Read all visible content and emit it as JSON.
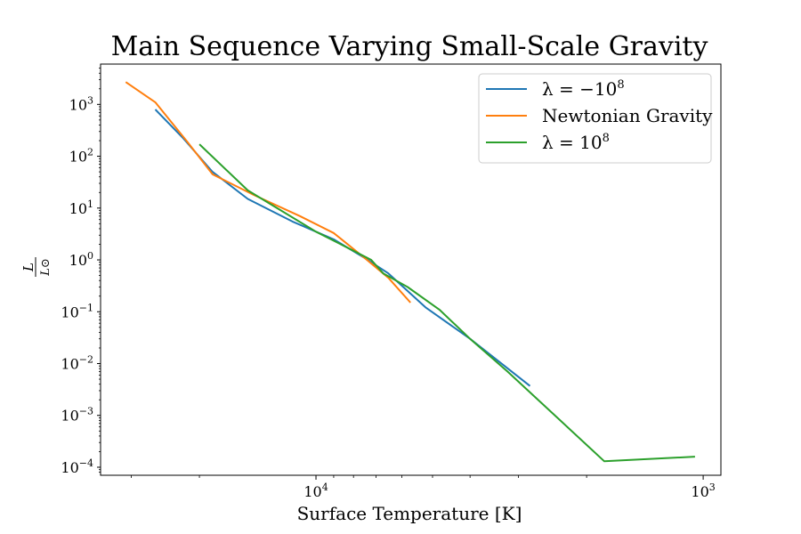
{
  "chart_data": {
    "type": "line",
    "title": "Main Sequence Varying Small-Scale Gravity",
    "xlabel": "Surface Temperature [K]",
    "ylabel_num": "L",
    "ylabel_den": "L⊙",
    "x_scale": "log",
    "y_scale": "log",
    "x_inverted": true,
    "xlim": [
      36000,
      900
    ],
    "ylim": [
      7e-05,
      6000
    ],
    "grid": false,
    "legend_position": "top-right",
    "x_ticks": [
      {
        "value": 10000,
        "base": "10",
        "exp": "4"
      },
      {
        "value": 1000,
        "base": "10",
        "exp": "3"
      }
    ],
    "y_ticks": [
      {
        "value": 1000,
        "base": "10",
        "exp": "3"
      },
      {
        "value": 100,
        "base": "10",
        "exp": "2"
      },
      {
        "value": 10,
        "base": "10",
        "exp": "1"
      },
      {
        "value": 1,
        "base": "10",
        "exp": "0"
      },
      {
        "value": 0.1,
        "base": "10",
        "exp": "−1"
      },
      {
        "value": 0.01,
        "base": "10",
        "exp": "−2"
      },
      {
        "value": 0.001,
        "base": "10",
        "exp": "−3"
      },
      {
        "value": 0.0001,
        "base": "10",
        "exp": "−4"
      }
    ],
    "series": [
      {
        "name": "λ = −10⁸",
        "legend_prefix": "λ = −10",
        "legend_sup": "8",
        "color": "#1f77b4",
        "points": [
          [
            26000,
            800
          ],
          [
            22000,
            220
          ],
          [
            18500,
            50
          ],
          [
            15000,
            15
          ],
          [
            11500,
            5.5
          ],
          [
            9000,
            2.5
          ],
          [
            7500,
            1.1
          ],
          [
            6500,
            0.55
          ],
          [
            5200,
            0.12
          ],
          [
            4000,
            0.03
          ],
          [
            2800,
            0.0037
          ]
        ]
      },
      {
        "name": "Newtonian Gravity",
        "legend_prefix": "Newtonian Gravity",
        "legend_sup": "",
        "color": "#ff7f0e",
        "points": [
          [
            31000,
            2700
          ],
          [
            26000,
            1100
          ],
          [
            21500,
            190
          ],
          [
            18500,
            45
          ],
          [
            14500,
            18
          ],
          [
            11000,
            7
          ],
          [
            9000,
            3.3
          ],
          [
            7500,
            1.1
          ],
          [
            6500,
            0.45
          ],
          [
            5700,
            0.15
          ]
        ]
      },
      {
        "name": "λ = 10⁸",
        "legend_prefix": "λ = 10",
        "legend_sup": "8",
        "color": "#2ca02c",
        "points": [
          [
            20000,
            170
          ],
          [
            15000,
            22
          ],
          [
            10000,
            3.5
          ],
          [
            8000,
            1.5
          ],
          [
            7200,
            1.0
          ],
          [
            6700,
            0.55
          ],
          [
            5800,
            0.3
          ],
          [
            4800,
            0.11
          ],
          [
            4000,
            0.03
          ],
          [
            3200,
            0.007
          ],
          [
            1800,
            0.00013
          ],
          [
            1050,
            0.00016
          ]
        ]
      }
    ]
  }
}
